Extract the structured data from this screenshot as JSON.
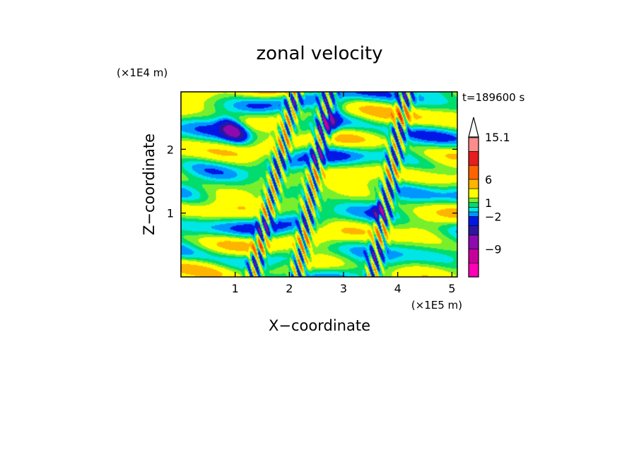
{
  "chart_data": {
    "type": "heatmap",
    "title": "zonal velocity",
    "xlabel": "X−coordinate",
    "ylabel": "Z−coordinate",
    "x_unit": "(×1E5 m)",
    "y_unit": "(×1E4 m)",
    "time_label": "t=189600 s",
    "xlim": [
      0,
      5.1
    ],
    "ylim": [
      0,
      2.9
    ],
    "x_ticks": [
      1,
      2,
      3,
      4,
      5
    ],
    "y_ticks": [
      1,
      2
    ],
    "x_tick_labels": [
      "1",
      "2",
      "3",
      "4",
      "5"
    ],
    "y_tick_labels": [
      "1",
      "2"
    ],
    "colorbar": {
      "levels": [
        -15,
        -12,
        -9,
        -6,
        -4,
        -2,
        -1,
        0,
        1,
        2,
        4,
        6,
        9,
        12,
        15.1
      ],
      "colors": [
        "#ff00b4",
        "#c8009b",
        "#8c0aaf",
        "#2c16a0",
        "#0018e6",
        "#0096ff",
        "#00e6e6",
        "#00dc6e",
        "#78ef2d",
        "#ffff00",
        "#ffb400",
        "#ff6400",
        "#e61e1e",
        "#ff8c8c",
        "#ffc8c8"
      ],
      "labeled_levels": [
        15.1,
        6,
        1,
        -2,
        -9
      ],
      "labels": [
        "15.1",
        "6",
        "1",
        "−2",
        "−9"
      ],
      "extend": "max"
    }
  }
}
